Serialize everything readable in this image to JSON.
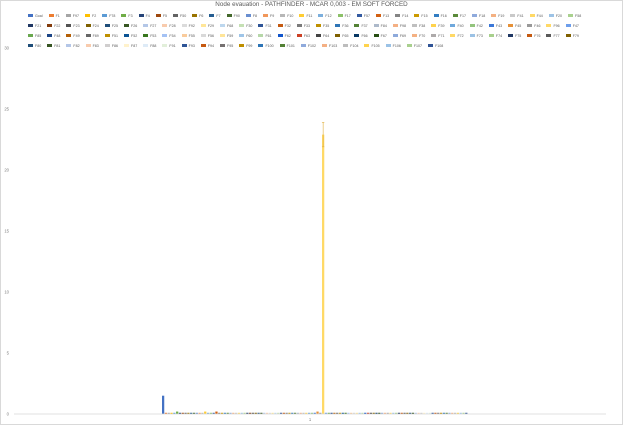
{
  "chart_data": {
    "type": "bar",
    "title": "Node evauation - PATHFINDER - MCAR 0,003 - EM SOFT FORCED",
    "categories": [
      "1"
    ],
    "xlabel": "",
    "ylabel": "",
    "ylim": [
      0,
      30
    ],
    "yticks": [
      0,
      5,
      10,
      15,
      20,
      25,
      30
    ],
    "grid": false,
    "legend_position": "top",
    "series": [
      {
        "name": "Goal",
        "values": [
          1.5
        ],
        "color": "#4472c4"
      },
      {
        "name": "F1",
        "values": [
          0.1
        ],
        "color": "#ed7d31"
      },
      {
        "name": "F97",
        "values": [
          0.1
        ],
        "color": "#a5a5a5"
      },
      {
        "name": "F2",
        "values": [
          0.1
        ],
        "color": "#ffc000"
      },
      {
        "name": "F78",
        "values": [
          0.1
        ],
        "color": "#5b9bd5"
      },
      {
        "name": "F3",
        "values": [
          0.2
        ],
        "color": "#70ad47"
      },
      {
        "name": "F4",
        "values": [
          0.1
        ],
        "color": "#264478"
      },
      {
        "name": "F5",
        "values": [
          0.1
        ],
        "color": "#9e480e"
      },
      {
        "name": "F50",
        "values": [
          0.1
        ],
        "color": "#636363"
      },
      {
        "name": "F6",
        "values": [
          0.1
        ],
        "color": "#997300"
      },
      {
        "name": "F7",
        "values": [
          0.1
        ],
        "color": "#255e91"
      },
      {
        "name": "F90",
        "values": [
          0.1
        ],
        "color": "#43682b"
      },
      {
        "name": "F8",
        "values": [
          0.1
        ],
        "color": "#698ed0"
      },
      {
        "name": "F9",
        "values": [
          0.1
        ],
        "color": "#f1975a"
      },
      {
        "name": "F10",
        "values": [
          0.1
        ],
        "color": "#b7b7b7"
      },
      {
        "name": "F11",
        "values": [
          0.2
        ],
        "color": "#ffcd33"
      },
      {
        "name": "F12",
        "values": [
          0.1
        ],
        "color": "#7cafdd"
      },
      {
        "name": "F17",
        "values": [
          0.1
        ],
        "color": "#8cc168"
      },
      {
        "name": "F57",
        "values": [
          0.1
        ],
        "color": "#335aa1"
      },
      {
        "name": "F13",
        "values": [
          0.2
        ],
        "color": "#d26012"
      },
      {
        "name": "F14",
        "values": [
          0.1
        ],
        "color": "#848484"
      },
      {
        "name": "F15",
        "values": [
          0.1
        ],
        "color": "#cc9a00"
      },
      {
        "name": "F16",
        "values": [
          0.1
        ],
        "color": "#327dc2"
      },
      {
        "name": "F17",
        "values": [
          0.1
        ],
        "color": "#5a8a39"
      },
      {
        "name": "F18",
        "values": [
          0.1
        ],
        "color": "#8faadc"
      },
      {
        "name": "F19",
        "values": [
          0.1
        ],
        "color": "#f4b183"
      },
      {
        "name": "F41",
        "values": [
          0.1
        ],
        "color": "#c9c9c9"
      },
      {
        "name": "F44",
        "values": [
          0.1
        ],
        "color": "#ffd966"
      },
      {
        "name": "F20",
        "values": [
          0.1
        ],
        "color": "#9dc3e6"
      },
      {
        "name": "F58",
        "values": [
          0.1
        ],
        "color": "#a9d18e"
      },
      {
        "name": "F21",
        "values": [
          0.1
        ],
        "color": "#203864"
      },
      {
        "name": "F22",
        "values": [
          0.1
        ],
        "color": "#843c0c"
      },
      {
        "name": "F23",
        "values": [
          0.1
        ],
        "color": "#525252"
      },
      {
        "name": "F24",
        "values": [
          0.1
        ],
        "color": "#7f6000"
      },
      {
        "name": "F25",
        "values": [
          0.1
        ],
        "color": "#1f4e79"
      },
      {
        "name": "F26",
        "values": [
          0.1
        ],
        "color": "#385723"
      },
      {
        "name": "F27",
        "values": [
          0.1
        ],
        "color": "#b4c7e7"
      },
      {
        "name": "F28",
        "values": [
          0.1
        ],
        "color": "#f8cbad"
      },
      {
        "name": "F92",
        "values": [
          0.1
        ],
        "color": "#dbdbdb"
      },
      {
        "name": "F29",
        "values": [
          0.1
        ],
        "color": "#ffe699"
      },
      {
        "name": "F68",
        "values": [
          0.1
        ],
        "color": "#bdd7ee"
      },
      {
        "name": "F30",
        "values": [
          0.1
        ],
        "color": "#c5e0b4"
      },
      {
        "name": "F31",
        "values": [
          0.1
        ],
        "color": "#2f5597"
      },
      {
        "name": "F32",
        "values": [
          0.1
        ],
        "color": "#c55a11"
      },
      {
        "name": "F33",
        "values": [
          0.1
        ],
        "color": "#7b7b7b"
      },
      {
        "name": "F35",
        "values": [
          0.1
        ],
        "color": "#bf9000"
      },
      {
        "name": "F36",
        "values": [
          0.1
        ],
        "color": "#2e75b6"
      },
      {
        "name": "F37",
        "values": [
          0.1
        ],
        "color": "#548235"
      },
      {
        "name": "F84",
        "values": [
          0.1
        ],
        "color": "#adb9ca"
      },
      {
        "name": "F98",
        "values": [
          0.1
        ],
        "color": "#f4b084"
      },
      {
        "name": "F38",
        "values": [
          0.1
        ],
        "color": "#bfbfbf"
      },
      {
        "name": "F39",
        "values": [
          0.1
        ],
        "color": "#ffd34d"
      },
      {
        "name": "F40",
        "values": [
          0.1
        ],
        "color": "#6fa8dc"
      },
      {
        "name": "F42",
        "values": [
          0.1
        ],
        "color": "#93c47d"
      },
      {
        "name": "F43",
        "values": [
          0.1
        ],
        "color": "#3c78d8"
      },
      {
        "name": "F45",
        "values": [
          0.2
        ],
        "color": "#e69138"
      },
      {
        "name": "F46",
        "values": [
          0.1
        ],
        "color": "#999999"
      },
      {
        "name": "F96",
        "values": [
          22.9
        ],
        "color": "#ffd966"
      },
      {
        "name": "F47",
        "values": [
          0.1
        ],
        "color": "#6d9eeb"
      },
      {
        "name": "F85",
        "values": [
          0.1
        ],
        "color": "#6aa84f"
      },
      {
        "name": "F48",
        "values": [
          0.1
        ],
        "color": "#1c4587"
      },
      {
        "name": "F49",
        "values": [
          0.1
        ],
        "color": "#b45f06"
      },
      {
        "name": "F89",
        "values": [
          0.1
        ],
        "color": "#666666"
      },
      {
        "name": "F51",
        "values": [
          0.1
        ],
        "color": "#bf9000"
      },
      {
        "name": "F52",
        "values": [
          0.1
        ],
        "color": "#0b5394"
      },
      {
        "name": "F53",
        "values": [
          0.1
        ],
        "color": "#38761d"
      },
      {
        "name": "F54",
        "values": [
          0.1
        ],
        "color": "#a4c2f4"
      },
      {
        "name": "F55",
        "values": [
          0.1
        ],
        "color": "#f9cb9c"
      },
      {
        "name": "F56",
        "values": [
          0.1
        ],
        "color": "#d9d9d9"
      },
      {
        "name": "F59",
        "values": [
          0.1
        ],
        "color": "#ffe599"
      },
      {
        "name": "F60",
        "values": [
          0.1
        ],
        "color": "#9fc5e8"
      },
      {
        "name": "F61",
        "values": [
          0.1
        ],
        "color": "#b6d7a8"
      },
      {
        "name": "F62",
        "values": [
          0.1
        ],
        "color": "#1155cc"
      },
      {
        "name": "F63",
        "values": [
          0.1
        ],
        "color": "#cc4125"
      },
      {
        "name": "F64",
        "values": [
          0.1
        ],
        "color": "#434343"
      },
      {
        "name": "F65",
        "values": [
          0.1
        ],
        "color": "#7f6000"
      },
      {
        "name": "F66",
        "values": [
          0.1
        ],
        "color": "#073763"
      },
      {
        "name": "F67",
        "values": [
          0.1
        ],
        "color": "#274e13"
      },
      {
        "name": "F69",
        "values": [
          0.1
        ],
        "color": "#8eaadb"
      },
      {
        "name": "F70",
        "values": [
          0.1
        ],
        "color": "#f4b183"
      },
      {
        "name": "F71",
        "values": [
          0.1
        ],
        "color": "#aeaaaa"
      },
      {
        "name": "F72",
        "values": [
          0.1
        ],
        "color": "#ffd966"
      },
      {
        "name": "F73",
        "values": [
          0.1
        ],
        "color": "#9cc2e5"
      },
      {
        "name": "F74",
        "values": [
          0.1
        ],
        "color": "#a8d08d"
      },
      {
        "name": "F75",
        "values": [
          0.1
        ],
        "color": "#203864"
      },
      {
        "name": "F76",
        "values": [
          0.1
        ],
        "color": "#c55a11"
      },
      {
        "name": "F77",
        "values": [
          0.1
        ],
        "color": "#595959"
      },
      {
        "name": "F79",
        "values": [
          0.1
        ],
        "color": "#806000"
      },
      {
        "name": "F80",
        "values": [
          0.1
        ],
        "color": "#1f4e79"
      },
      {
        "name": "F81",
        "values": [
          0.1
        ],
        "color": "#375623"
      },
      {
        "name": "F82",
        "values": [
          0.1
        ],
        "color": "#b4c6e7"
      },
      {
        "name": "F83",
        "values": [
          0.1
        ],
        "color": "#f8cbad"
      },
      {
        "name": "F86",
        "values": [
          0.1
        ],
        "color": "#d0cece"
      },
      {
        "name": "F87",
        "values": [
          0.1
        ],
        "color": "#fff2cc"
      },
      {
        "name": "F88",
        "values": [
          0.1
        ],
        "color": "#deebf7"
      },
      {
        "name": "F91",
        "values": [
          0.1
        ],
        "color": "#e2efda"
      },
      {
        "name": "F93",
        "values": [
          0.1
        ],
        "color": "#2f5597"
      },
      {
        "name": "F94",
        "values": [
          0.1
        ],
        "color": "#c65911"
      },
      {
        "name": "F95",
        "values": [
          0.1
        ],
        "color": "#767171"
      },
      {
        "name": "F99",
        "values": [
          0.1
        ],
        "color": "#bf8f00"
      },
      {
        "name": "F100",
        "values": [
          0.1
        ],
        "color": "#2e75b6"
      },
      {
        "name": "F101",
        "values": [
          0.1
        ],
        "color": "#538135"
      },
      {
        "name": "F102",
        "values": [
          0.1
        ],
        "color": "#8faadc"
      },
      {
        "name": "F103",
        "values": [
          0.1
        ],
        "color": "#f4b084"
      },
      {
        "name": "F104",
        "values": [
          0.1
        ],
        "color": "#bdbdbd"
      },
      {
        "name": "F105",
        "values": [
          0.1
        ],
        "color": "#ffd34d"
      },
      {
        "name": "F106",
        "values": [
          0.1
        ],
        "color": "#9bc2e6"
      },
      {
        "name": "F107",
        "values": [
          0.1
        ],
        "color": "#a9d08e"
      },
      {
        "name": "F108",
        "values": [
          0.1
        ],
        "color": "#305496"
      }
    ]
  }
}
